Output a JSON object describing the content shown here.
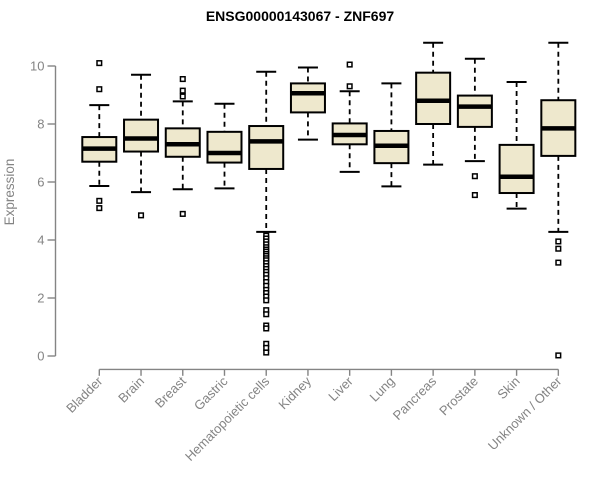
{
  "chart_data": {
    "type": "boxplot",
    "title": "ENSG00000143067 - ZNF697",
    "ylabel": "Expression",
    "xlabel": "",
    "yticks": [
      0,
      2,
      4,
      6,
      8,
      10
    ],
    "ylim": [
      0,
      11
    ],
    "grid": false,
    "legend": "none",
    "axis_color": "#848484",
    "box_fill": "#EEE8CD",
    "box_border": "#000000",
    "median_color": "#000000",
    "whisker_color": "#000000",
    "outlier_fill": "#FFFFFF",
    "title_color": "#000000",
    "categories": [
      "Bladder",
      "Brain",
      "Breast",
      "Gastric",
      "Hematopoietic cells",
      "Kidney",
      "Liver",
      "Lung",
      "Pancreas",
      "Prostate",
      "Skin",
      "Unknown / Other"
    ],
    "boxes": [
      {
        "category": "Bladder",
        "low": 5.86,
        "q1": 6.7,
        "median": 7.15,
        "q3": 7.55,
        "high": 8.65,
        "outliers": [
          10.1,
          9.2,
          5.35,
          5.1
        ]
      },
      {
        "category": "Brain",
        "low": 5.65,
        "q1": 7.05,
        "median": 7.5,
        "q3": 8.15,
        "high": 9.7,
        "outliers": [
          4.85
        ]
      },
      {
        "category": "Breast",
        "low": 5.75,
        "q1": 6.87,
        "median": 7.3,
        "q3": 7.85,
        "high": 8.78,
        "outliers": [
          9.55,
          9.15,
          8.95,
          4.9
        ]
      },
      {
        "category": "Gastric",
        "low": 5.78,
        "q1": 6.67,
        "median": 7.0,
        "q3": 7.73,
        "high": 8.7,
        "outliers": []
      },
      {
        "category": "Hematopoietic cells",
        "low": 4.28,
        "q1": 6.45,
        "median": 7.4,
        "q3": 7.93,
        "high": 9.8,
        "outliers": [
          4.15,
          4.05,
          3.95,
          3.85,
          3.75,
          3.67,
          3.6,
          3.52,
          3.45,
          3.37,
          3.3,
          3.2,
          3.1,
          3.0,
          2.9,
          2.8,
          2.68,
          2.55,
          2.42,
          2.28,
          2.17,
          2.05,
          1.92,
          1.58,
          1.44,
          1.05,
          0.95,
          0.42,
          0.28,
          0.12
        ]
      },
      {
        "category": "Kidney",
        "low": 7.46,
        "q1": 8.4,
        "median": 9.06,
        "q3": 9.4,
        "high": 9.95,
        "outliers": []
      },
      {
        "category": "Liver",
        "low": 6.35,
        "q1": 7.3,
        "median": 7.62,
        "q3": 8.02,
        "high": 9.13,
        "outliers": [
          10.05,
          9.3
        ]
      },
      {
        "category": "Lung",
        "low": 5.85,
        "q1": 6.65,
        "median": 7.25,
        "q3": 7.76,
        "high": 9.4,
        "outliers": []
      },
      {
        "category": "Pancreas",
        "low": 6.6,
        "q1": 8.0,
        "median": 8.8,
        "q3": 9.77,
        "high": 10.8,
        "outliers": []
      },
      {
        "category": "Prostate",
        "low": 6.72,
        "q1": 7.9,
        "median": 8.6,
        "q3": 8.98,
        "high": 10.25,
        "outliers": [
          6.2,
          5.55
        ]
      },
      {
        "category": "Skin",
        "low": 5.08,
        "q1": 5.62,
        "median": 6.18,
        "q3": 7.28,
        "high": 9.45,
        "outliers": []
      },
      {
        "category": "Unknown / Other",
        "low": 4.28,
        "q1": 6.9,
        "median": 7.85,
        "q3": 8.82,
        "high": 10.8,
        "outliers": [
          3.95,
          3.7,
          3.22,
          0.02
        ]
      }
    ]
  }
}
